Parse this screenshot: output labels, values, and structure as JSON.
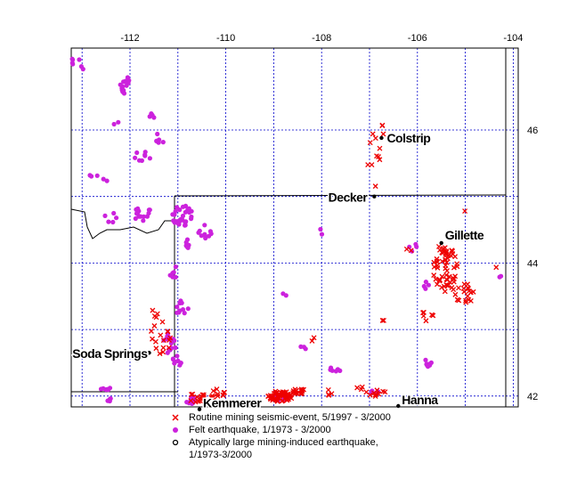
{
  "map": {
    "lon_ticks": [
      "-112",
      "-110",
      "-108",
      "-106",
      "-104"
    ],
    "lat_ticks": [
      "46",
      "44",
      "42"
    ],
    "extent": {
      "lon": [
        -113.1,
        -103.8
      ],
      "lat": [
        41.7,
        46.4
      ]
    },
    "grid": true,
    "colors": {
      "frame": "#000000",
      "grid": "#0000cc",
      "mining_event": "#ee0000",
      "felt_quake": "#cc22dd",
      "large_mining": "#000000"
    },
    "cities": [
      {
        "name": "Colstrip",
        "lon": -106.75,
        "lat": 45.88
      },
      {
        "name": "Decker",
        "lon": -106.9,
        "lat": 45.0
      },
      {
        "name": "Gillette",
        "lon": -105.5,
        "lat": 44.3
      },
      {
        "name": "Soda Springs",
        "lon": -111.6,
        "lat": 42.65
      },
      {
        "name": "Kemmerer",
        "lon": -110.55,
        "lat": 41.8
      },
      {
        "name": "Hanna",
        "lon": -106.4,
        "lat": 41.85
      }
    ]
  },
  "legend": {
    "items": [
      {
        "symbol": "red-x",
        "label": "Routine mining seismic-event, 5/1997 - 3/2000"
      },
      {
        "symbol": "magenta-dot",
        "label": "Felt earthquake, 1/1973 - 3/2000"
      },
      {
        "symbol": "black-circle",
        "label": "Atypically large mining-induced earthquake,\n1/1973-3/2000"
      }
    ]
  }
}
